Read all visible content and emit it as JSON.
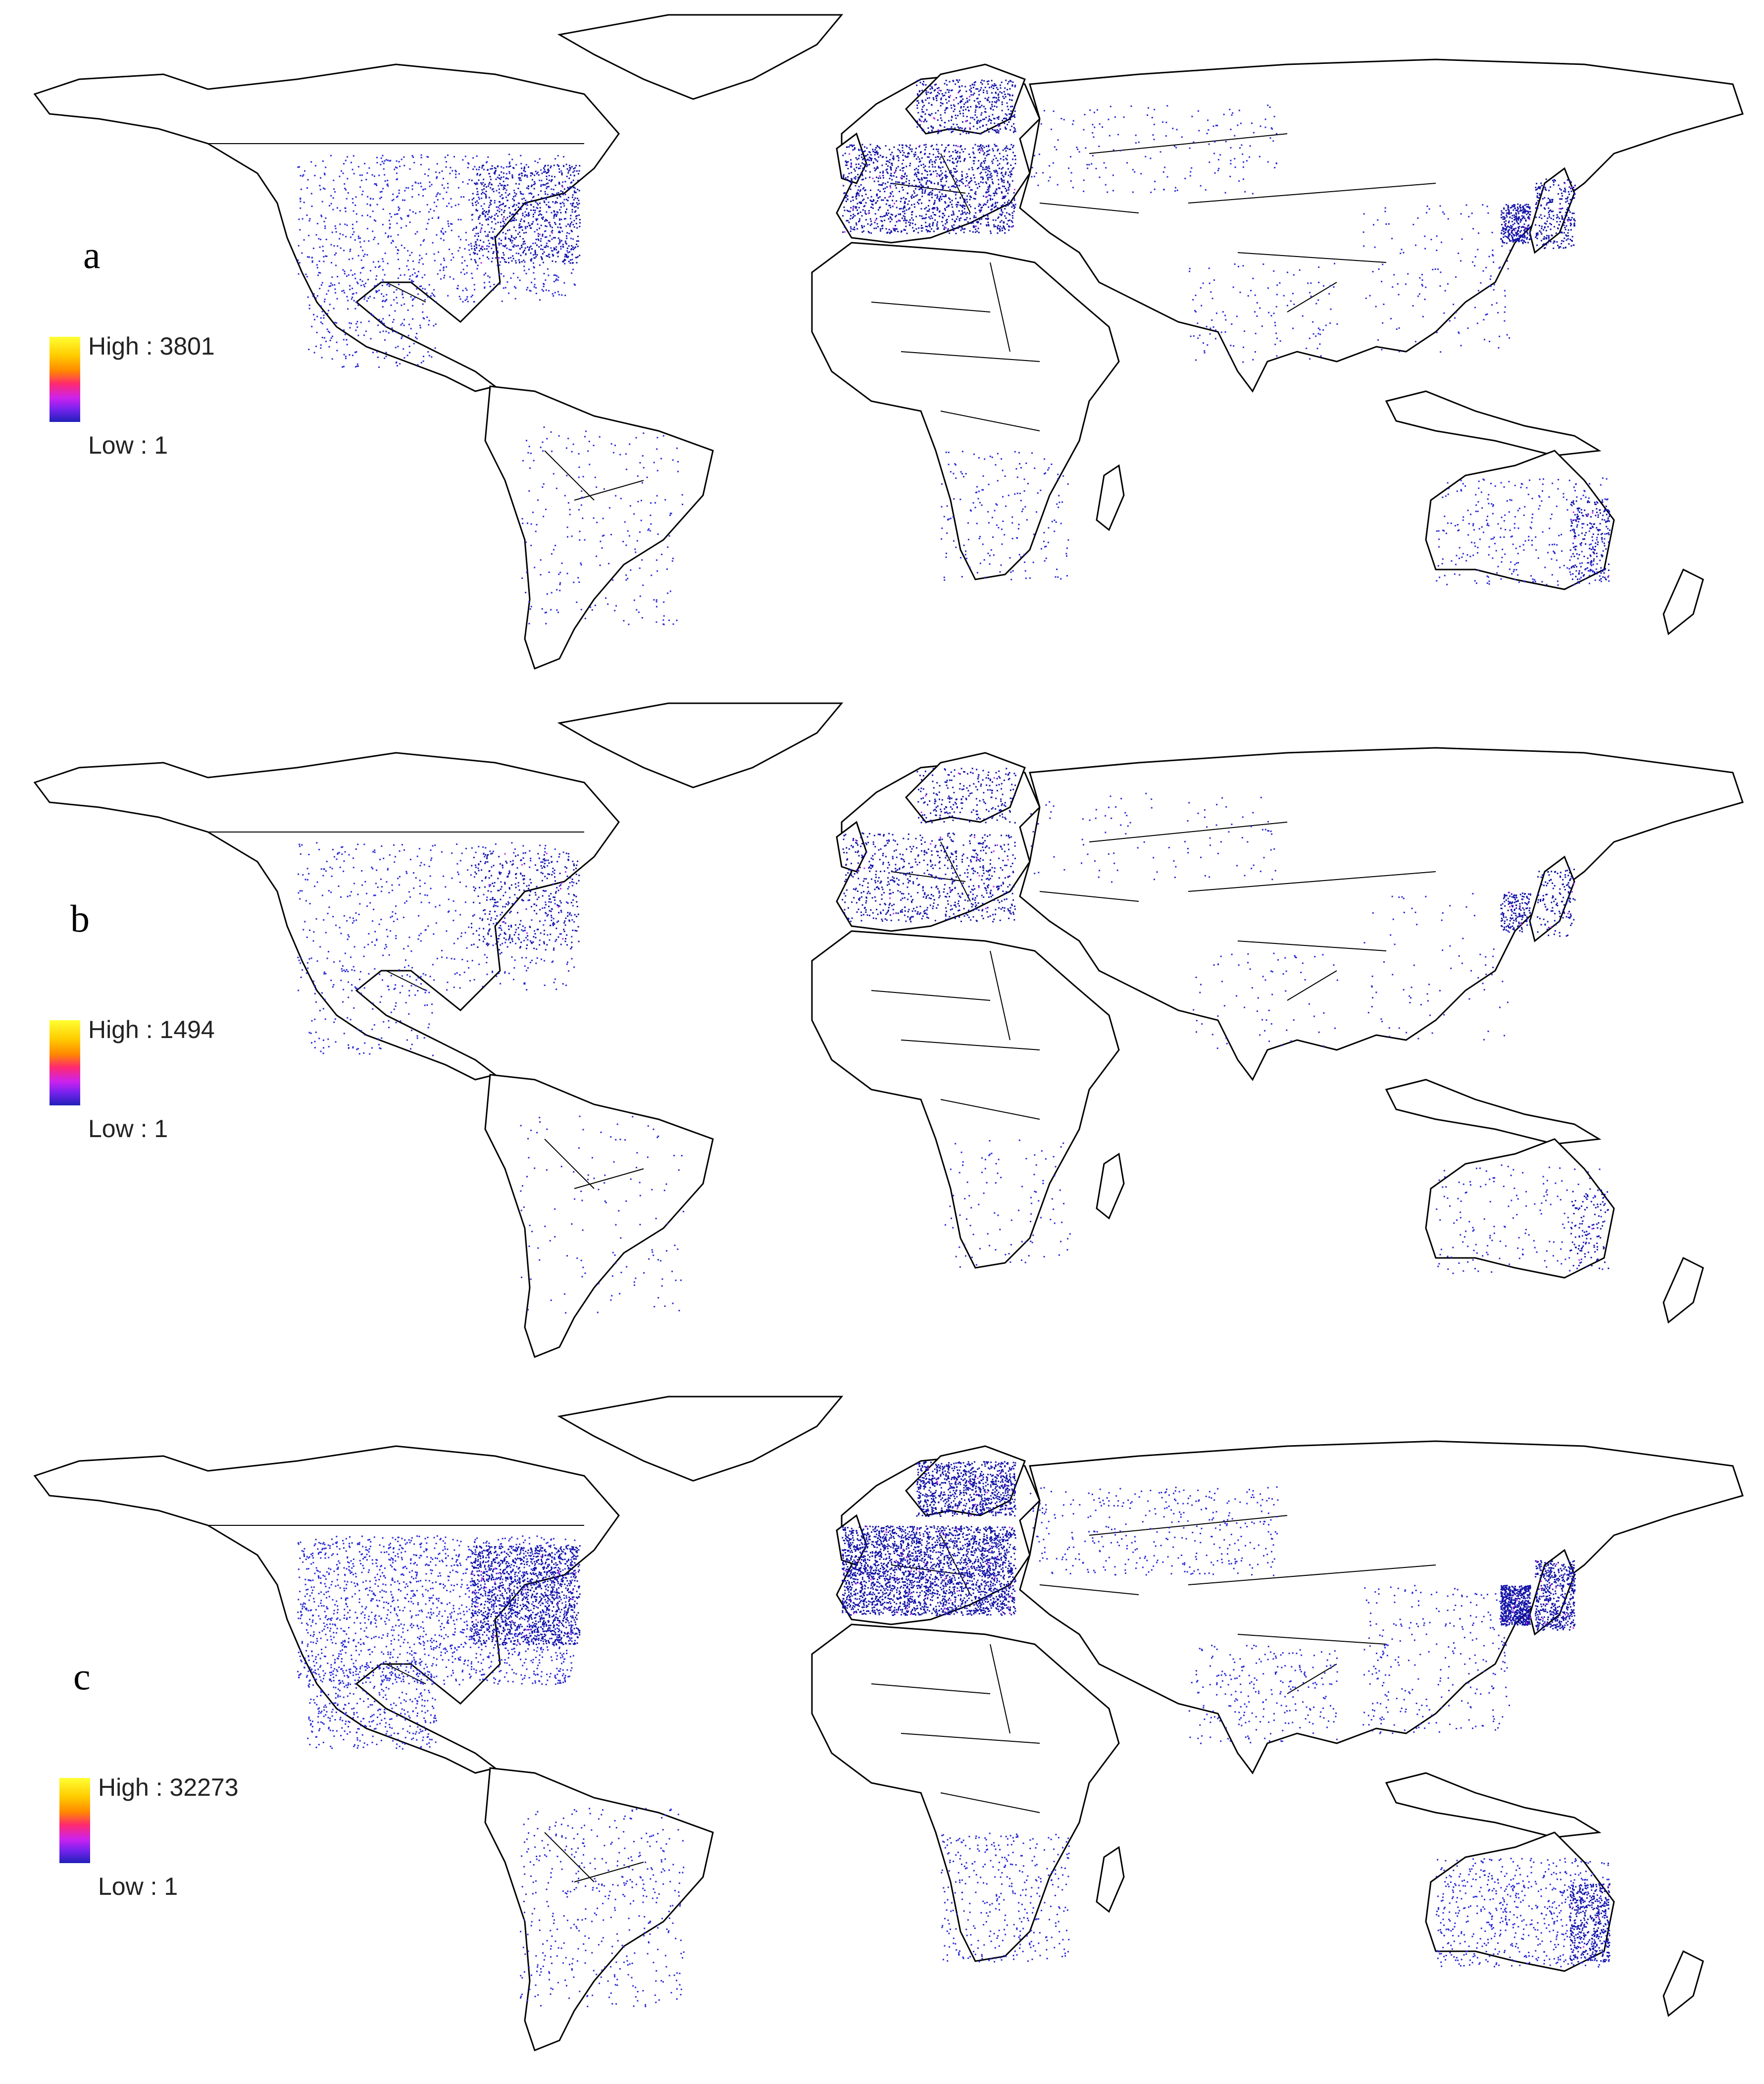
{
  "panels": [
    {
      "label": "a",
      "legend": {
        "high_label": "High : 3801",
        "low_label": "Low : 1",
        "high": 3801,
        "low": 1
      },
      "density": 1.0
    },
    {
      "label": "b",
      "legend": {
        "high_label": "High : 1494",
        "low_label": "Low : 1",
        "high": 1494,
        "low": 1
      },
      "density": 0.55
    },
    {
      "label": "c",
      "legend": {
        "high_label": "High : 32273",
        "low_label": "Low : 1",
        "high": 32273,
        "low": 1
      },
      "density": 2.0
    }
  ],
  "colors": {
    "outline": "#000000",
    "dots": "#2a2ad8",
    "dense": "#1414a8",
    "hot": "#cc22ee",
    "background": "#ffffff"
  },
  "hotspots": [
    "Western Europe",
    "Eastern United States",
    "South Korea",
    "Japan",
    "Scandinavia"
  ]
}
